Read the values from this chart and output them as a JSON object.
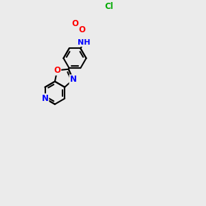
{
  "background_color": "#EBEBEB",
  "bond_color": "#000000",
  "bond_width": 1.5,
  "atom_colors": {
    "N": "#0000FF",
    "O": "#FF0000",
    "Cl": "#00AA00",
    "H_color": "#808080"
  },
  "font_size": 8.5,
  "figsize": [
    3.0,
    3.0
  ],
  "dpi": 100,
  "xlim": [
    0,
    10
  ],
  "ylim": [
    0,
    10
  ]
}
